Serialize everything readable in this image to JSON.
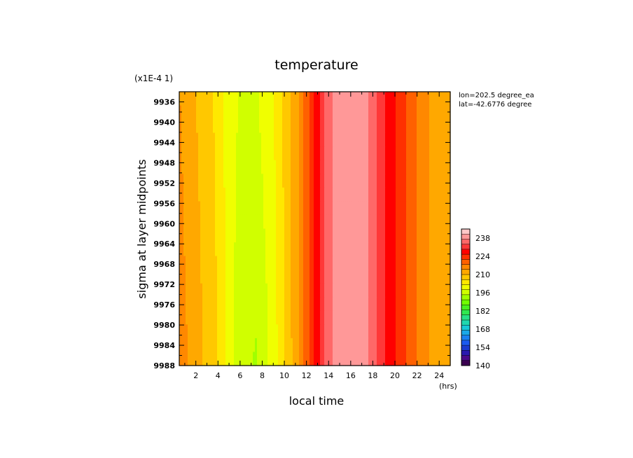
{
  "chart_data": {
    "type": "heatmap",
    "title": "temperature",
    "xlabel": "local time",
    "ylabel": "sigma at layer midpoints",
    "x_unit": "(hrs)",
    "y_scale_label": "(x1E-4 1)",
    "annotations": [
      "lon=202.5 degree_ea",
      "lat=-42.6776 degree"
    ],
    "x_range": [
      0.5,
      25
    ],
    "y_range": [
      9934,
      9988
    ],
    "x_ticks": [
      2,
      4,
      6,
      8,
      10,
      12,
      14,
      16,
      18,
      20,
      22,
      24
    ],
    "y_ticks": [
      9936,
      9940,
      9944,
      9948,
      9952,
      9956,
      9960,
      9964,
      9968,
      9972,
      9976,
      9980,
      9984,
      9988
    ],
    "colorbar": {
      "min": 140,
      "max": 245,
      "tick_labels": [
        140,
        154,
        168,
        182,
        196,
        210,
        224,
        238
      ],
      "colors": [
        "#3a0050",
        "#4b0a8a",
        "#2a1ab0",
        "#1a3ad0",
        "#1a5af0",
        "#1a80f0",
        "#1aa8e8",
        "#18c8d8",
        "#20d8b0",
        "#28e088",
        "#30e850",
        "#48f020",
        "#70ff00",
        "#a0ff00",
        "#d0ff00",
        "#f0ff00",
        "#ffe800",
        "#ffc800",
        "#ffa800",
        "#ff8800",
        "#ff6000",
        "#ff3000",
        "#ff0000",
        "#ff3838",
        "#ff6868",
        "#ff9898",
        "#ffc8c8"
      ]
    },
    "x": [
      0.5,
      2,
      4,
      5,
      6,
      7.5,
      9,
      10,
      11,
      12,
      13,
      14,
      15,
      16.5,
      18,
      19,
      20,
      21,
      22,
      23,
      24,
      25
    ],
    "y_top_values": [
      214,
      210,
      205,
      200,
      198,
      198,
      202,
      207,
      212,
      220,
      228,
      236,
      240,
      240,
      236,
      230,
      226,
      222,
      218,
      214,
      212,
      212
    ],
    "y_bottom_values": [
      216,
      212,
      206,
      200,
      196,
      194,
      200,
      206,
      212,
      220,
      228,
      236,
      240,
      240,
      236,
      230,
      226,
      222,
      218,
      214,
      212,
      212
    ]
  }
}
